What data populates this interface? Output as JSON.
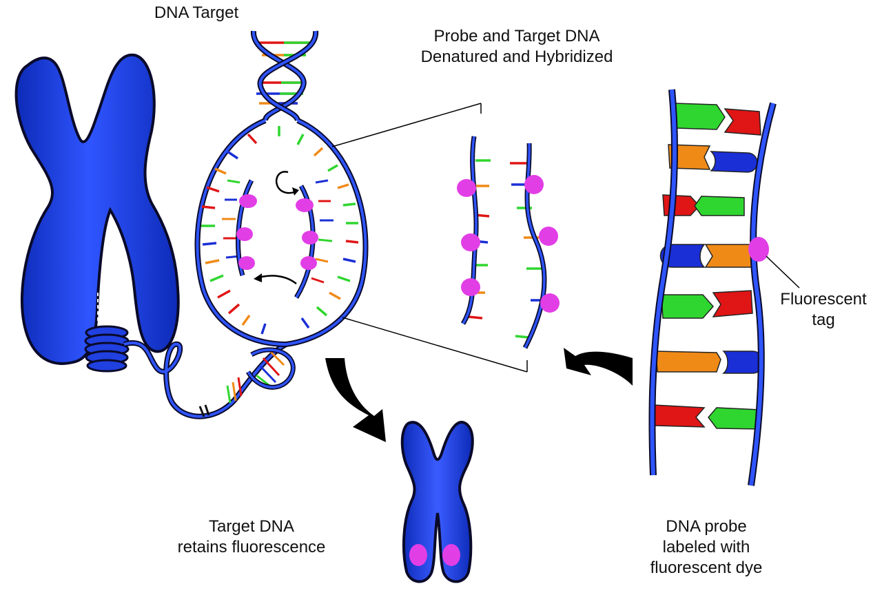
{
  "figure": {
    "title_left": "DNA Target",
    "title_top": [
      "Probe and Target DNA",
      "Denatured and Hybridized"
    ],
    "label_tag": [
      "Fluorescent",
      "tag"
    ],
    "label_bottom_left": [
      "Target DNA",
      "retains fluorescence"
    ],
    "label_bottom_right": [
      "DNA probe",
      "labeled with",
      "fluorescent dye"
    ]
  },
  "colors": {
    "chromosome": "#1f3fe0",
    "chromosome_outline": "#0a0a2a",
    "strand": "#2346d8",
    "tag": "#e23ee6",
    "base_red": "#e01515",
    "base_green": "#2fd62f",
    "base_orange": "#f08a17",
    "base_blue": "#1a2fd6",
    "arrow": "#000000"
  }
}
